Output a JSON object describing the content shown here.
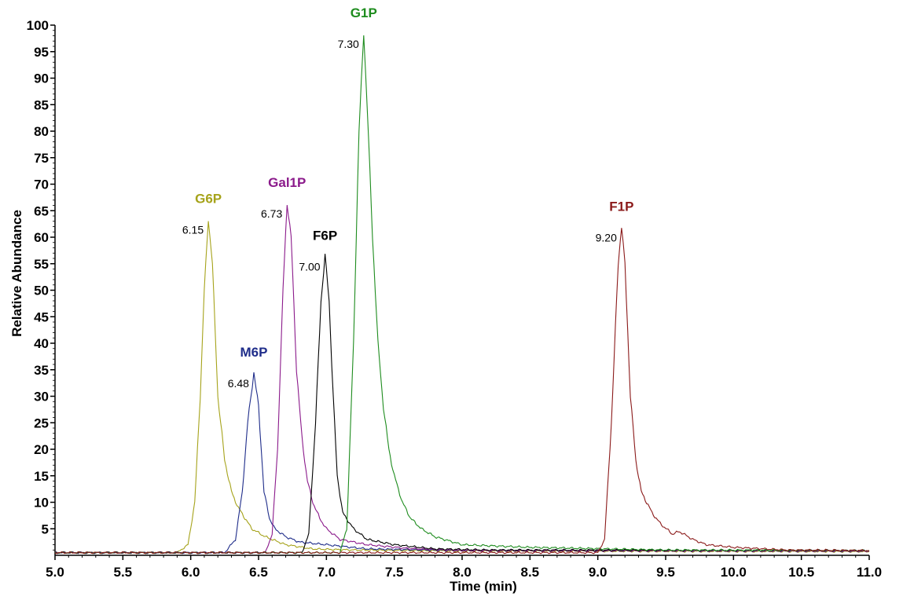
{
  "chart_data": {
    "type": "line",
    "title": "",
    "xlabel": "Time (min)",
    "ylabel": "Relative Abundance",
    "xlim": [
      5.0,
      11.0
    ],
    "ylim": [
      0,
      100
    ],
    "x_ticks": [
      "5.0",
      "5.5",
      "6.0",
      "6.5",
      "7.0",
      "7.5",
      "8.0",
      "8.5",
      "9.0",
      "9.5",
      "10.0",
      "10.5",
      "11.0"
    ],
    "y_ticks": [
      "5",
      "10",
      "15",
      "20",
      "25",
      "30",
      "35",
      "40",
      "45",
      "50",
      "55",
      "60",
      "65",
      "70",
      "75",
      "80",
      "85",
      "90",
      "95",
      "100"
    ],
    "grid": false,
    "series": [
      {
        "name": "G6P",
        "retention_time": "6.15",
        "color": "#a6a31b",
        "points": [
          [
            5.0,
            0.5
          ],
          [
            5.9,
            0.5
          ],
          [
            5.98,
            2
          ],
          [
            6.03,
            10
          ],
          [
            6.07,
            30
          ],
          [
            6.1,
            50
          ],
          [
            6.13,
            63.5
          ],
          [
            6.16,
            55
          ],
          [
            6.2,
            30
          ],
          [
            6.25,
            18
          ],
          [
            6.3,
            12
          ],
          [
            6.35,
            9
          ],
          [
            6.4,
            7
          ],
          [
            6.45,
            5
          ],
          [
            6.55,
            3.5
          ],
          [
            6.7,
            2
          ],
          [
            6.9,
            1.2
          ],
          [
            7.2,
            1
          ],
          [
            8.0,
            0.8
          ],
          [
            11.0,
            0.7
          ]
        ]
      },
      {
        "name": "M6P",
        "retention_time": "6.48",
        "color": "#1f2d8a",
        "points": [
          [
            5.0,
            0.5
          ],
          [
            6.25,
            0.5
          ],
          [
            6.33,
            3
          ],
          [
            6.38,
            12
          ],
          [
            6.42,
            25
          ],
          [
            6.465,
            34.5
          ],
          [
            6.5,
            28
          ],
          [
            6.54,
            12
          ],
          [
            6.58,
            7
          ],
          [
            6.62,
            5
          ],
          [
            6.7,
            3.5
          ],
          [
            6.8,
            2.5
          ],
          [
            7.0,
            2
          ],
          [
            7.3,
            1.2
          ],
          [
            8.0,
            0.9
          ],
          [
            11.0,
            0.8
          ]
        ]
      },
      {
        "name": "Gal1P",
        "retention_time": "6.73",
        "color": "#8b1a8b",
        "points": [
          [
            5.0,
            0.5
          ],
          [
            6.55,
            0.5
          ],
          [
            6.6,
            4
          ],
          [
            6.64,
            20
          ],
          [
            6.68,
            50
          ],
          [
            6.71,
            66.5
          ],
          [
            6.74,
            60
          ],
          [
            6.78,
            35
          ],
          [
            6.82,
            22
          ],
          [
            6.86,
            14
          ],
          [
            6.9,
            10
          ],
          [
            6.95,
            7
          ],
          [
            7.0,
            5
          ],
          [
            7.1,
            3
          ],
          [
            7.3,
            2
          ],
          [
            7.6,
            1.3
          ],
          [
            8.0,
            0.9
          ],
          [
            11.0,
            0.8
          ]
        ]
      },
      {
        "name": "F6P",
        "retention_time": "7.00",
        "color": "#000000",
        "points": [
          [
            5.0,
            0.5
          ],
          [
            6.82,
            0.5
          ],
          [
            6.87,
            4
          ],
          [
            6.92,
            25
          ],
          [
            6.96,
            48
          ],
          [
            6.99,
            56.5
          ],
          [
            7.02,
            48
          ],
          [
            7.05,
            30
          ],
          [
            7.08,
            15
          ],
          [
            7.12,
            8
          ],
          [
            7.2,
            5
          ],
          [
            7.3,
            3
          ],
          [
            7.5,
            2
          ],
          [
            7.8,
            1.2
          ],
          [
            8.2,
            1
          ],
          [
            11.0,
            0.9
          ]
        ]
      },
      {
        "name": "G1P",
        "retention_time": "7.30",
        "color": "#1e8c1e",
        "points": [
          [
            5.0,
            0.5
          ],
          [
            7.1,
            0.5
          ],
          [
            7.15,
            5
          ],
          [
            7.2,
            40
          ],
          [
            7.24,
            80
          ],
          [
            7.275,
            98.5
          ],
          [
            7.3,
            85
          ],
          [
            7.34,
            60
          ],
          [
            7.38,
            40
          ],
          [
            7.42,
            28
          ],
          [
            7.46,
            20
          ],
          [
            7.5,
            15
          ],
          [
            7.56,
            10
          ],
          [
            7.62,
            7
          ],
          [
            7.7,
            5
          ],
          [
            7.8,
            3.5
          ],
          [
            8.0,
            2
          ],
          [
            8.5,
            1.5
          ],
          [
            9.5,
            1
          ],
          [
            11.0,
            0.9
          ]
        ]
      },
      {
        "name": "F1P",
        "retention_time": "9.20",
        "color": "#8b1a1a",
        "points": [
          [
            5.0,
            0.5
          ],
          [
            9.0,
            0.5
          ],
          [
            9.05,
            3
          ],
          [
            9.1,
            25
          ],
          [
            9.15,
            55
          ],
          [
            9.175,
            62
          ],
          [
            9.2,
            55
          ],
          [
            9.24,
            30
          ],
          [
            9.28,
            18
          ],
          [
            9.32,
            12
          ],
          [
            9.36,
            10
          ],
          [
            9.4,
            8
          ],
          [
            9.46,
            6
          ],
          [
            9.55,
            4
          ],
          [
            9.6,
            4.5
          ],
          [
            9.7,
            3
          ],
          [
            9.8,
            2
          ],
          [
            10.0,
            1.5
          ],
          [
            10.4,
            1
          ],
          [
            11.0,
            0.9
          ]
        ]
      }
    ]
  }
}
